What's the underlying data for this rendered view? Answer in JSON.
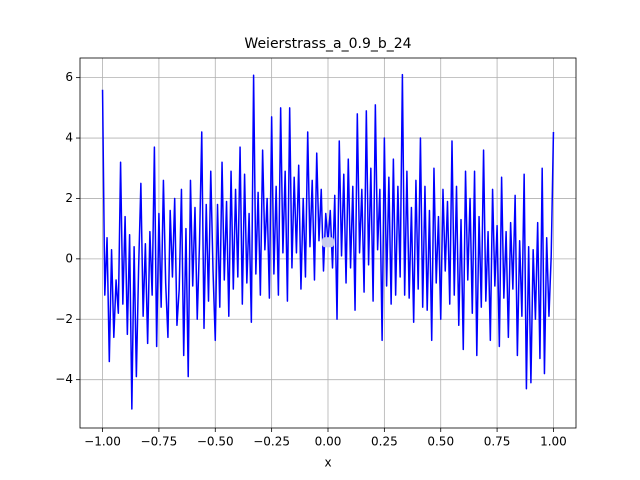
{
  "chart_data": {
    "type": "line",
    "title": "Weierstrass_a_0.9_b_24",
    "x_label": "x",
    "x": [
      -1.0,
      -0.99,
      -0.98,
      -0.97,
      -0.96,
      -0.95,
      -0.94,
      -0.93,
      -0.92,
      -0.91,
      -0.9,
      -0.89,
      -0.88,
      -0.87,
      -0.86,
      -0.85,
      -0.84,
      -0.83,
      -0.82,
      -0.81,
      -0.8,
      -0.79,
      -0.78,
      -0.77,
      -0.76,
      -0.75,
      -0.74,
      -0.73,
      -0.72,
      -0.71,
      -0.7,
      -0.69,
      -0.68,
      -0.67,
      -0.66,
      -0.65,
      -0.64,
      -0.63,
      -0.62,
      -0.61,
      -0.6,
      -0.59,
      -0.58,
      -0.57,
      -0.56,
      -0.55,
      -0.54,
      -0.53,
      -0.52,
      -0.51,
      -0.5,
      -0.49,
      -0.48,
      -0.47,
      -0.46,
      -0.45,
      -0.44,
      -0.43,
      -0.42,
      -0.41,
      -0.4,
      -0.39,
      -0.38,
      -0.37,
      -0.36,
      -0.35,
      -0.34,
      -0.33,
      -0.32,
      -0.31,
      -0.3,
      -0.29,
      -0.28,
      -0.27,
      -0.26,
      -0.25,
      -0.24,
      -0.23,
      -0.22,
      -0.21,
      -0.2,
      -0.19,
      -0.18,
      -0.17,
      -0.16,
      -0.15,
      -0.14,
      -0.13,
      -0.12,
      -0.11,
      -0.1,
      -0.09,
      -0.08,
      -0.07,
      -0.06,
      -0.05,
      -0.04,
      -0.03,
      -0.02,
      -0.01,
      0.0,
      0.01,
      0.02,
      0.03,
      0.04,
      0.05,
      0.06,
      0.07,
      0.08,
      0.09,
      0.1,
      0.11,
      0.12,
      0.13,
      0.14,
      0.15,
      0.16,
      0.17,
      0.18,
      0.19,
      0.2,
      0.21,
      0.22,
      0.23,
      0.24,
      0.25,
      0.26,
      0.27,
      0.28,
      0.29,
      0.3,
      0.31,
      0.32,
      0.33,
      0.34,
      0.35,
      0.36,
      0.37,
      0.38,
      0.39,
      0.4,
      0.41,
      0.42,
      0.43,
      0.44,
      0.45,
      0.46,
      0.47,
      0.48,
      0.49,
      0.5,
      0.51,
      0.52,
      0.53,
      0.54,
      0.55,
      0.56,
      0.57,
      0.58,
      0.59,
      0.6,
      0.61,
      0.62,
      0.63,
      0.64,
      0.65,
      0.66,
      0.67,
      0.68,
      0.69,
      0.7,
      0.71,
      0.72,
      0.73,
      0.74,
      0.75,
      0.76,
      0.77,
      0.78,
      0.79,
      0.8,
      0.81,
      0.82,
      0.83,
      0.84,
      0.85,
      0.86,
      0.87,
      0.88,
      0.89,
      0.9,
      0.91,
      0.92,
      0.93,
      0.94,
      0.95,
      0.96,
      0.97,
      0.98,
      0.99,
      1.0
    ],
    "series": [
      {
        "color": "#0000ff",
        "values": [
          5.6,
          -1.2,
          0.7,
          -3.4,
          0.3,
          -2.6,
          -0.7,
          -1.8,
          3.2,
          -1.5,
          1.4,
          -2.5,
          0.8,
          -4.97,
          0.4,
          -3.9,
          -0.3,
          2.5,
          -1.9,
          0.5,
          -2.8,
          0.9,
          -1.2,
          3.7,
          -2.9,
          1.5,
          -1.6,
          2.6,
          -0.8,
          -2.6,
          1.6,
          -0.6,
          2.0,
          -2.2,
          -1.0,
          2.3,
          -3.2,
          1.0,
          -3.9,
          2.6,
          -0.9,
          1.7,
          -2.0,
          0.5,
          4.2,
          -2.3,
          1.8,
          -1.4,
          2.9,
          -0.4,
          -2.7,
          1.8,
          -1.6,
          3.2,
          -0.7,
          1.9,
          -1.9,
          2.9,
          -1.0,
          2.3,
          -0.6,
          3.7,
          -1.5,
          2.8,
          -0.8,
          1.5,
          -2.1,
          6.08,
          -0.5,
          2.2,
          -1.2,
          3.6,
          0.3,
          2.0,
          -1.3,
          4.7,
          -0.5,
          2.4,
          -1.2,
          5.0,
          0.2,
          2.9,
          -1.4,
          5.0,
          -0.3,
          2.7,
          0.2,
          3.1,
          -1.0,
          2.0,
          -0.6,
          4.2,
          0.4,
          2.6,
          -0.7,
          3.5,
          0.6,
          2.3,
          -0.4,
          1.5,
          0.55,
          1.6,
          -0.3,
          2.1,
          -2.0,
          3.9,
          0.1,
          2.8,
          -0.8,
          3.3,
          -0.3,
          2.4,
          -1.7,
          4.8,
          0.2,
          2.3,
          -1.1,
          4.9,
          -0.2,
          3.0,
          -1.4,
          5.1,
          0.3,
          2.3,
          -2.7,
          4.0,
          -0.9,
          2.7,
          -1.5,
          3.3,
          -1.2,
          2.4,
          -0.6,
          6.1,
          -1.2,
          2.9,
          -1.3,
          1.7,
          -2.1,
          2.6,
          -1.0,
          4.0,
          -1.6,
          2.4,
          -1.7,
          1.6,
          -2.7,
          3.0,
          -0.8,
          1.4,
          -2.0,
          2.3,
          -0.4,
          1.9,
          -1.5,
          3.9,
          -1.2,
          2.4,
          -2.2,
          1.3,
          -3.0,
          2.9,
          -0.7,
          2.0,
          -1.8,
          2.9,
          -3.2,
          1.4,
          -1.6,
          3.6,
          -1.4,
          0.9,
          -2.7,
          2.3,
          -0.9,
          1.1,
          -2.9,
          2.7,
          -1.3,
          0.9,
          -2.6,
          1.2,
          -1.0,
          2.1,
          -3.2,
          0.6,
          -1.9,
          2.8,
          -4.3,
          0.4,
          -4.1,
          0.3,
          -2.0,
          1.2,
          -3.3,
          3.0,
          -3.8,
          0.7,
          -1.9,
          0.1,
          4.2
        ]
      }
    ],
    "highlight_point": {
      "x": 0,
      "y": 0.55,
      "color": "#c8cbee"
    },
    "xlim": [
      -1.1,
      1.1
    ],
    "ylim": [
      -5.6,
      6.65
    ],
    "xticks": [
      {
        "value": -1,
        "label": "−1.00"
      },
      {
        "value": -0.75,
        "label": "−0.75"
      },
      {
        "value": -0.5,
        "label": "−0.50"
      },
      {
        "value": -0.25,
        "label": "−0.25"
      },
      {
        "value": 0,
        "label": "0.00"
      },
      {
        "value": 0.25,
        "label": "0.25"
      },
      {
        "value": 0.5,
        "label": "0.50"
      },
      {
        "value": 0.75,
        "label": "0.75"
      },
      {
        "value": 1,
        "label": "1.00"
      }
    ],
    "yticks": [
      {
        "value": -4,
        "label": "−4"
      },
      {
        "value": -2,
        "label": "−2"
      },
      0,
      2,
      4,
      6
    ],
    "grid": true
  }
}
